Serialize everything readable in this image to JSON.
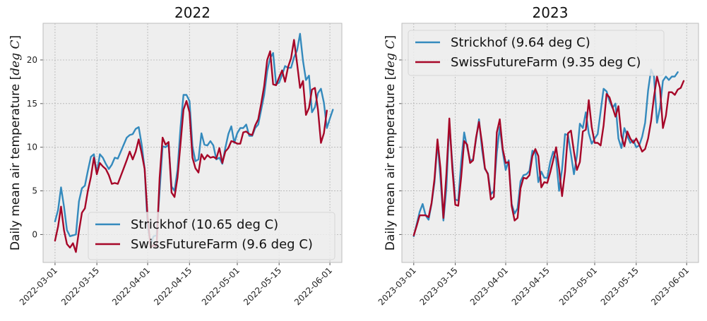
{
  "chart_data": [
    {
      "type": "line",
      "title": "2022",
      "ylabel": "Daily mean air temperature [",
      "ylabel_unit": "deg C",
      "ylabel_close": "]",
      "xlim": [
        "2022-02-25",
        "2022-06-05"
      ],
      "ylim": [
        -3.2,
        24.2
      ],
      "x_ticks": [
        "2022-03-01",
        "2022-03-15",
        "2022-04-01",
        "2022-04-15",
        "2022-05-01",
        "2022-05-15",
        "2022-06-01"
      ],
      "y_ticks": [
        0,
        5,
        10,
        15,
        20
      ],
      "grid": true,
      "legend_position": "lower right",
      "start_date": "2022-03-01",
      "series": [
        {
          "name": "Strickhof (10.65 deg C)",
          "color": "#348abd",
          "values": [
            1.5,
            2.8,
            5.4,
            3.2,
            0.5,
            -0.2,
            -0.1,
            0.0,
            3.8,
            5.3,
            5.6,
            7.3,
            8.9,
            9.2,
            7.0,
            9.2,
            8.8,
            8.1,
            7.5,
            8.0,
            8.8,
            8.7,
            9.5,
            10.3,
            11.1,
            11.4,
            11.5,
            12.1,
            12.3,
            10.3,
            7.5,
            1.0,
            -1.0,
            -0.2,
            -0.1,
            5.0,
            10.1,
            10.0,
            10.3,
            5.5,
            5.0,
            7.4,
            12.3,
            16.0,
            16.0,
            15.3,
            10.1,
            8.4,
            8.6,
            11.6,
            10.3,
            10.2,
            10.7,
            10.2,
            8.6,
            8.8,
            8.1,
            9.9,
            11.5,
            12.4,
            10.5,
            11.6,
            12.2,
            12.2,
            12.6,
            11.3,
            11.3,
            12.2,
            12.6,
            14.3,
            16.0,
            18.7,
            20.2,
            20.8,
            17.2,
            17.4,
            18.3,
            19.3,
            19.1,
            19.1,
            20.3,
            21.1,
            23.0,
            19.9,
            17.7,
            18.2,
            14.0,
            14.6,
            16.2,
            16.7,
            15.1,
            12.2,
            13.3,
            14.3
          ]
        },
        {
          "name": "SwissFutureFarm (9.6 deg C)",
          "color": "#a60628",
          "values": [
            -0.7,
            0.9,
            3.2,
            0.5,
            -1.1,
            -1.5,
            -1.0,
            -2.0,
            0.4,
            2.5,
            3.0,
            5.0,
            6.6,
            8.8,
            6.9,
            8.2,
            7.8,
            7.5,
            6.8,
            5.8,
            5.9,
            5.8,
            6.7,
            7.6,
            8.5,
            9.5,
            8.6,
            9.5,
            10.9,
            9.3,
            7.5,
            2.0,
            -1.5,
            -1.2,
            -1.4,
            6.5,
            11.1,
            10.3,
            10.6,
            4.8,
            4.3,
            6.5,
            10.4,
            14.3,
            15.3,
            14.0,
            8.8,
            7.6,
            7.1,
            9.2,
            8.6,
            9.1,
            8.8,
            8.9,
            8.7,
            9.9,
            8.2,
            9.5,
            9.9,
            10.7,
            10.6,
            10.4,
            10.4,
            11.7,
            11.8,
            11.5,
            11.4,
            12.5,
            13.2,
            15.0,
            17.0,
            20.0,
            21.0,
            17.2,
            17.1,
            18.0,
            18.8,
            17.5,
            19.2,
            20.2,
            22.3,
            19.6,
            16.8,
            17.6,
            13.7,
            14.5,
            16.6,
            16.8,
            14.3,
            10.5,
            11.6,
            14.2
          ]
        }
      ]
    },
    {
      "type": "line",
      "title": "2023",
      "ylabel": "Daily mean air temperature [",
      "ylabel_unit": "deg C",
      "ylabel_close": "]",
      "xlim": [
        "2023-02-25",
        "2023-06-05"
      ],
      "ylim": [
        -3.2,
        24.2
      ],
      "x_ticks": [
        "2023-03-01",
        "2023-03-15",
        "2023-04-01",
        "2023-04-15",
        "2023-05-01",
        "2023-05-15",
        "2023-06-01"
      ],
      "y_ticks": [
        0,
        5,
        10,
        15,
        20
      ],
      "grid": true,
      "legend_position": "upper left",
      "start_date": "2023-03-01",
      "series": [
        {
          "name": "Strickhof (9.64 deg C)",
          "color": "#348abd",
          "values": [
            -0.2,
            1.2,
            2.6,
            3.5,
            2.2,
            1.7,
            3.5,
            6.0,
            10.6,
            6.5,
            1.6,
            5.3,
            12.8,
            8.2,
            4.0,
            3.9,
            8.3,
            11.7,
            10.0,
            8.5,
            8.6,
            10.9,
            13.2,
            9.8,
            7.5,
            7.0,
            4.6,
            5.0,
            9.4,
            12.3,
            9.5,
            7.4,
            8.5,
            3.5,
            2.4,
            3.0,
            6.1,
            6.8,
            6.9,
            7.3,
            9.6,
            9.4,
            6.0,
            7.2,
            6.5,
            6.5,
            8.3,
            9.5,
            8.7,
            5.0,
            7.5,
            11.5,
            11.4,
            9.2,
            6.9,
            9.0,
            12.7,
            12.2,
            14.0,
            11.6,
            10.4,
            11.0,
            11.5,
            14.1,
            16.7,
            16.4,
            15.3,
            14.5,
            15.0,
            11.0,
            9.9,
            12.2,
            11.3,
            10.5,
            10.8,
            10.0,
            10.2,
            11.2,
            12.8,
            16.5,
            18.9,
            18.1,
            12.8,
            14.5,
            17.6,
            18.1,
            17.7,
            18.1,
            18.1,
            18.6
          ]
        },
        {
          "name": "SwissFutureFarm (9.35 deg C)",
          "color": "#a60628",
          "values": [
            -0.1,
            1.0,
            2.2,
            2.2,
            2.2,
            2.0,
            3.6,
            6.4,
            10.9,
            7.6,
            1.9,
            6.9,
            13.3,
            7.6,
            3.4,
            3.3,
            6.6,
            10.7,
            10.3,
            8.2,
            8.5,
            11.1,
            12.9,
            10.5,
            7.6,
            6.9,
            4.0,
            4.3,
            11.7,
            13.2,
            9.8,
            8.2,
            8.3,
            3.3,
            1.6,
            1.9,
            5.3,
            6.5,
            6.4,
            6.8,
            9.0,
            9.8,
            9.0,
            5.4,
            6.0,
            5.9,
            7.1,
            8.5,
            10.0,
            7.5,
            4.4,
            7.2,
            11.6,
            11.9,
            9.5,
            7.4,
            8.3,
            11.8,
            12.0,
            15.4,
            12.3,
            10.5,
            10.5,
            10.2,
            12.5,
            16.1,
            15.7,
            14.6,
            13.5,
            14.7,
            11.3,
            10.1,
            11.8,
            11.0,
            10.5,
            11.0,
            10.3,
            9.5,
            9.8,
            11.0,
            13.0,
            15.8,
            18.1,
            16.8,
            12.2,
            13.6,
            16.3,
            16.3,
            16.0,
            16.6,
            16.8,
            17.6
          ]
        }
      ]
    }
  ]
}
